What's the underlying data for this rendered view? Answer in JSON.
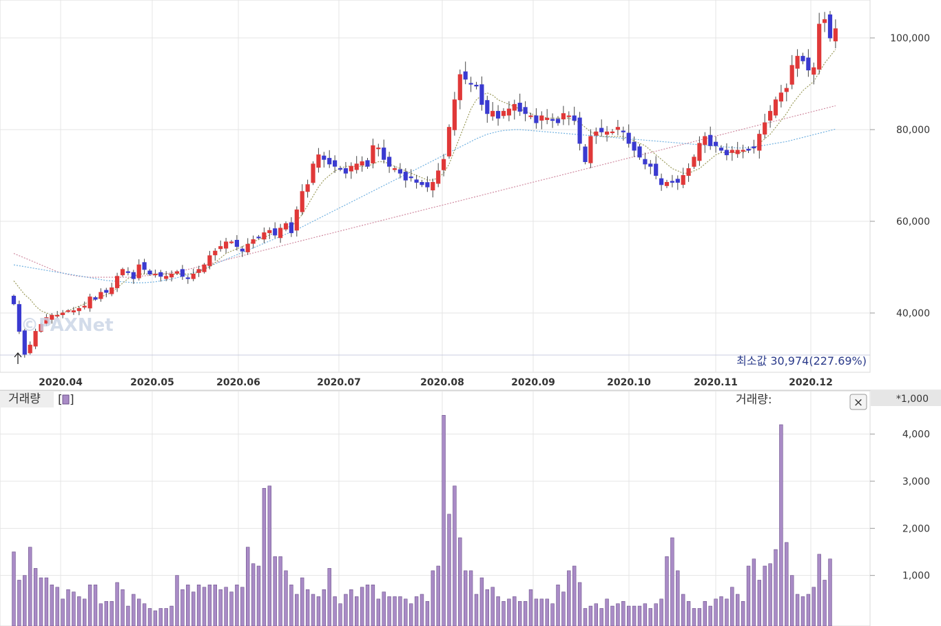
{
  "price_panel": {
    "y_ticks": [
      "100,000",
      "80,000",
      "60,000",
      "40,000"
    ],
    "x_ticks": [
      "2020.04",
      "2020.05",
      "2020.06",
      "2020.07",
      "2020.08",
      "2020.09",
      "2020.10",
      "2020.11",
      "2020.12"
    ],
    "min_label": "최소값 30,974(227.69%)",
    "watermark": "©PAXNet"
  },
  "volume_panel": {
    "title": "거래량",
    "legend_box": "[",
    "legend_box_end": "]",
    "readout_label": "거래량:",
    "unit": "*1,000",
    "y_ticks": [
      "4,000",
      "3,000",
      "2,000",
      "1,000"
    ],
    "close_label": "×"
  },
  "colors": {
    "up": "#e03838",
    "down": "#3a3ad0",
    "volume": "#a98bc6",
    "ma_short": "#9a9a5a",
    "ma_mid": "#6fb0e0",
    "ma_long": "#d08aa0"
  },
  "chart_data": [
    {
      "type": "candlestick",
      "title": "",
      "ylim": [
        26000,
        108000
      ],
      "x_ticks": [
        "2020.04",
        "2020.05",
        "2020.06",
        "2020.07",
        "2020.08",
        "2020.09",
        "2020.10",
        "2020.11",
        "2020.12"
      ],
      "close": [
        42000,
        36000,
        31000,
        33000,
        36000,
        37500,
        39000,
        39500,
        39500,
        40000,
        40500,
        40500,
        41000,
        41500,
        43500,
        43000,
        44500,
        44500,
        45500,
        48000,
        49500,
        49000,
        47500,
        50500,
        49500,
        48500,
        48500,
        48000,
        48000,
        48500,
        49000,
        48000,
        47500,
        48500,
        49500,
        50500,
        52500,
        53500,
        54500,
        55500,
        55500,
        54500,
        53500,
        55000,
        56000,
        56500,
        57500,
        58000,
        57000,
        58500,
        59500,
        57500,
        62500,
        66500,
        68000,
        72500,
        74500,
        73500,
        72500,
        72000,
        71500,
        70500,
        72000,
        72500,
        73000,
        72000,
        76500,
        76000,
        73500,
        72000,
        71500,
        70500,
        69000,
        69500,
        68500,
        68000,
        67500,
        68500,
        71000,
        73500,
        80500,
        86500,
        92000,
        91000,
        90000,
        89500,
        85500,
        83500,
        84000,
        82500,
        84000,
        84500,
        85500,
        84000,
        83500,
        83000,
        81500,
        83000,
        82500,
        82000,
        81500,
        83500,
        83000,
        82000,
        77000,
        73000,
        78500,
        79500,
        79500,
        79500,
        79500,
        80500,
        79500,
        77000,
        75500,
        74000,
        72500,
        72000,
        70000,
        68000,
        68500,
        68500,
        68500,
        70000,
        71500,
        74000,
        77000,
        78500,
        76500,
        76500,
        75500,
        74500,
        75500,
        75500,
        75500,
        75500,
        76000,
        79000,
        81500,
        84000,
        86500,
        88000,
        89000,
        94000,
        96000,
        95000,
        93000,
        93500,
        103000,
        104000,
        100000,
        102000
      ],
      "ma_short": [
        47000,
        45500,
        44000,
        43000,
        41500,
        40500,
        40000,
        39500,
        39500,
        40000,
        40500,
        41000,
        41500,
        42000,
        42500,
        43000,
        43500,
        44000,
        44500,
        45500,
        46500,
        47500,
        48000,
        48500,
        48500,
        48500,
        48500,
        48500,
        48500,
        48500,
        48500,
        48500,
        48500,
        48500,
        49000,
        49500,
        50000,
        51000,
        52000,
        53000,
        53500,
        54000,
        54500,
        55000,
        55500,
        56000,
        56500,
        57000,
        57500,
        58000,
        58500,
        59000,
        60000,
        61500,
        63500,
        65500,
        67500,
        69000,
        70000,
        71000,
        71500,
        72000,
        72000,
        72000,
        72000,
        72000,
        72500,
        73000,
        73000,
        72500,
        72000,
        71500,
        71000,
        70500,
        70000,
        69500,
        69000,
        69000,
        69500,
        70500,
        72500,
        75500,
        78500,
        81500,
        84500,
        86500,
        87500,
        88000,
        87500,
        86500,
        86000,
        85500,
        85000,
        84500,
        84000,
        83500,
        83000,
        83000,
        82500,
        82500,
        82500,
        82500,
        82500,
        82000,
        81500,
        80500,
        79500,
        79000,
        78500,
        78500,
        78500,
        78500,
        78500,
        78000,
        77500,
        77000,
        76500,
        75500,
        74500,
        73500,
        72500,
        71500,
        71000,
        70500,
        70500,
        71000,
        71500,
        72500,
        73500,
        74500,
        75000,
        75000,
        75000,
        75000,
        75000,
        75500,
        76000,
        77000,
        78000,
        79000,
        80500,
        82000,
        83500,
        85500,
        87000,
        88500,
        89500,
        90500,
        92500,
        94500,
        96000,
        97500
      ],
      "ma_mid": [
        50500,
        50300,
        50100,
        49900,
        49700,
        49500,
        49300,
        49100,
        48900,
        48700,
        48500,
        48300,
        48100,
        47900,
        47700,
        47500,
        47300,
        47100,
        47000,
        46900,
        46800,
        46700,
        46600,
        46600,
        46600,
        46700,
        46800,
        47000,
        47200,
        47400,
        47700,
        48000,
        48400,
        48800,
        49200,
        49700,
        50200,
        50700,
        51200,
        51700,
        52200,
        52700,
        53200,
        53700,
        54200,
        54700,
        55200,
        55700,
        56200,
        56700,
        57200,
        57700,
        58200,
        58800,
        59400,
        60000,
        60600,
        61200,
        61800,
        62400,
        63000,
        63600,
        64200,
        64800,
        65400,
        66000,
        66600,
        67200,
        67800,
        68400,
        69000,
        69600,
        70200,
        70800,
        71400,
        72000,
        72600,
        73200,
        73800,
        74400,
        75000,
        75600,
        76200,
        76800,
        77400,
        78000,
        78500,
        79000,
        79300,
        79600,
        79800,
        79900,
        80000,
        80000,
        79900,
        79800,
        79700,
        79600,
        79500,
        79400,
        79300,
        79200,
        79100,
        79000,
        78900,
        78800,
        78700,
        78600,
        78500,
        78400,
        78300,
        78200,
        78100,
        78000,
        77900,
        77800,
        77700,
        77600,
        77500,
        77400,
        77300,
        77200,
        77100,
        77000,
        76900,
        76800,
        76700,
        76600,
        76500,
        76400,
        76300,
        76200,
        76100,
        76000,
        76000,
        76100,
        76200,
        76400,
        76600,
        76800,
        77000,
        77200,
        77400,
        77700,
        78000,
        78300,
        78600,
        78900,
        79200,
        79500,
        79800,
        80100
      ],
      "ma_long": [
        53000,
        52500,
        52000,
        51500,
        51000,
        50500,
        50000,
        49500,
        49000,
        48700,
        48400,
        48200,
        48000,
        47900,
        47800,
        47800,
        47800,
        47800,
        47800,
        47800,
        47800,
        47800,
        47900,
        48000,
        48100,
        48200,
        48300,
        48400,
        48600,
        48800,
        49000,
        49200,
        49500,
        49800,
        50100,
        50400,
        50700,
        51000,
        51300,
        51600,
        51900,
        52200,
        52500,
        52800,
        53100,
        53400,
        53700,
        54000,
        54300,
        54600,
        54900,
        55200,
        55500,
        55800,
        56100,
        56400,
        56700,
        57000,
        57300,
        57600,
        57900,
        58200,
        58500,
        58800,
        59100,
        59400,
        59700,
        60000,
        60300,
        60600,
        60900,
        61200,
        61500,
        61800,
        62100,
        62400,
        62700,
        63000,
        63300,
        63600,
        63900,
        64200,
        64500,
        64800,
        65100,
        65400,
        65700,
        66000,
        66300,
        66600,
        66900,
        67200,
        67500,
        67800,
        68100,
        68400,
        68700,
        69000,
        69300,
        69600,
        69900,
        70200,
        70500,
        70800,
        71100,
        71400,
        71700,
        72000,
        72300,
        72600,
        72900,
        73200,
        73500,
        73800,
        74100,
        74400,
        74700,
        75000,
        75300,
        75600,
        75900,
        76200,
        76500,
        76800,
        77100,
        77400,
        77700,
        78000,
        78300,
        78600,
        78900,
        79200,
        79500,
        79800,
        80100,
        80400,
        80700,
        81000,
        81300,
        81600,
        81900,
        82200,
        82500,
        82800,
        83100,
        83400,
        83700,
        84000,
        84300,
        84600,
        84900,
        85200
      ],
      "min_value": 30974,
      "min_change_pct": 227.69
    },
    {
      "type": "bar",
      "title": "거래량",
      "unit": "*1,000",
      "ylim": [
        0,
        4600
      ],
      "values": [
        1500,
        900,
        1000,
        1600,
        1150,
        950,
        950,
        800,
        750,
        500,
        700,
        650,
        550,
        500,
        800,
        800,
        400,
        450,
        450,
        850,
        700,
        350,
        600,
        500,
        400,
        300,
        250,
        300,
        300,
        350,
        1000,
        700,
        800,
        650,
        800,
        750,
        800,
        800,
        700,
        750,
        650,
        800,
        750,
        1600,
        1250,
        1200,
        2850,
        2900,
        1400,
        1400,
        1100,
        800,
        600,
        950,
        700,
        600,
        550,
        700,
        1150,
        550,
        400,
        600,
        700,
        550,
        750,
        800,
        800,
        500,
        650,
        550,
        550,
        550,
        500,
        400,
        550,
        600,
        450,
        1100,
        1200,
        4400,
        2300,
        2900,
        1800,
        1100,
        1100,
        600,
        950,
        700,
        750,
        550,
        450,
        500,
        550,
        450,
        450,
        700,
        500,
        500,
        500,
        400,
        800,
        650,
        1100,
        1200,
        850,
        300,
        350,
        400,
        300,
        500,
        350,
        400,
        450,
        350,
        350,
        350,
        400,
        300,
        400,
        500,
        1400,
        1800,
        1100,
        600,
        450,
        300,
        300,
        450,
        350,
        500,
        550,
        500,
        750,
        600,
        450,
        1200,
        1350,
        900,
        1200,
        1250,
        1550,
        4200,
        1700,
        1000,
        600,
        550,
        600,
        750,
        1450,
        900,
        1350
      ]
    }
  ]
}
